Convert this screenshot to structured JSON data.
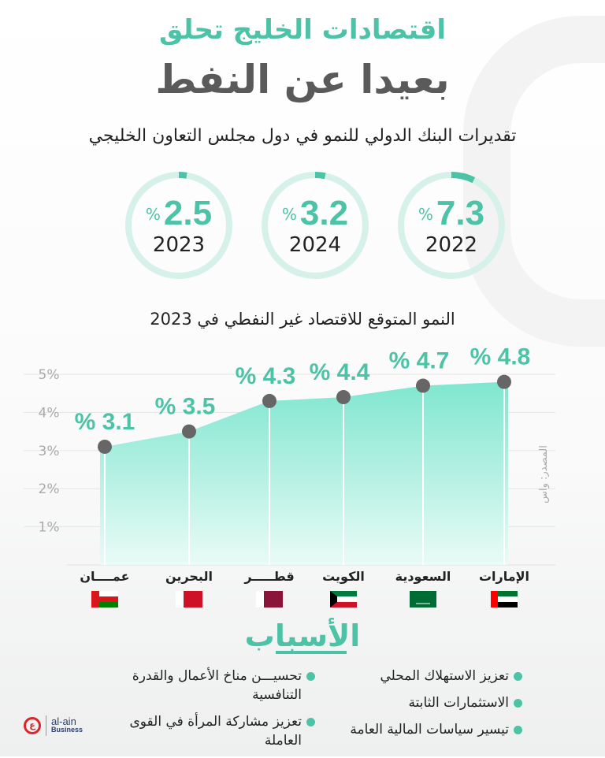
{
  "header": {
    "title_line1": "اقتصادات الخليج تحلق",
    "title_line2": "بعيدا عن النفط",
    "subtitle": "تقديرات البنك الدولي للنمو في دول مجلس التعاون الخليجي"
  },
  "colors": {
    "accent": "#4cc3a6",
    "ring": "#d6f1ea",
    "point": "#666666",
    "title_dark": "#5a5a5a"
  },
  "gcc_growth": [
    {
      "year": "2023",
      "value": "2.5",
      "unit": "%"
    },
    {
      "year": "2024",
      "value": "3.2",
      "unit": "%"
    },
    {
      "year": "2022",
      "value": "7.3",
      "unit": "%"
    }
  ],
  "chart_data": {
    "type": "area",
    "title": "النمو المتوقع للاقتصاد غير النفطي في 2023",
    "categories": [
      "عمــــان",
      "البحرين",
      "قطـــــر",
      "الكويت",
      "السعودية",
      "الإمارات"
    ],
    "flags": [
      "oman",
      "bahrain",
      "qatar",
      "kuwait",
      "saudi-arabia",
      "uae"
    ],
    "values": [
      3.1,
      3.5,
      4.3,
      4.4,
      4.7,
      4.8
    ],
    "value_labels": [
      "% 3.1",
      "% 3.5",
      "% 4.3",
      "% 4.4",
      "% 4.7",
      "% 4.8"
    ],
    "yticks": [
      "1%",
      "2%",
      "3%",
      "4%",
      "5%"
    ],
    "ylim": [
      0,
      5
    ],
    "grid": true,
    "source": "المصدر: واس"
  },
  "reasons": {
    "title": "الأسباب",
    "right": [
      "تعزيز الاستهلاك المحلي",
      "الاستثمارات الثابتة",
      "تيسير سياسات المالية العامة"
    ],
    "left": [
      "تحسيـــن مناخ الأعمال والقدرة التنافسية",
      "تعزيز مشاركة المرأة في القوى العاملة"
    ]
  },
  "brand": {
    "name": "al-ain",
    "sub": "Business",
    "mark": "ع"
  }
}
